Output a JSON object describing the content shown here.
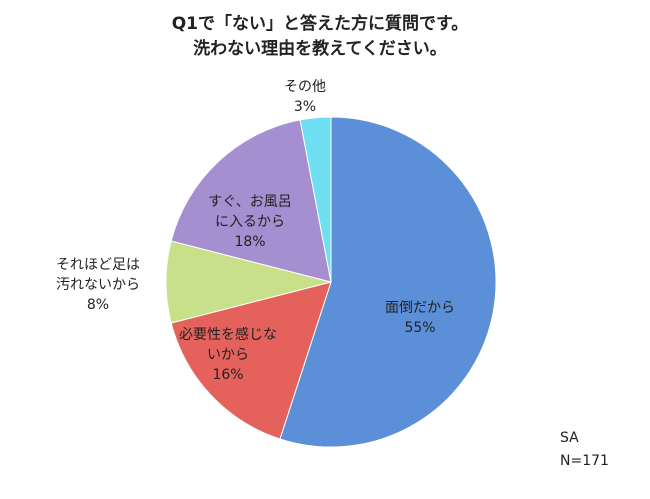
{
  "chart_data": {
    "type": "pie",
    "title": [
      "Q1で「ない」と答えた方に質問です。",
      "洗わない理由を教えてください。"
    ],
    "categories": [
      [
        "面倒だから"
      ],
      [
        "必要性を感じな",
        "いから"
      ],
      [
        "それほど足は",
        "汚れないから"
      ],
      [
        "すぐ、お風呂",
        "に入るから"
      ],
      [
        "その他"
      ]
    ],
    "values": [
      55,
      16,
      8,
      18,
      3
    ],
    "value_labels": [
      "55%",
      "16%",
      "8%",
      "18%",
      "3%"
    ],
    "colors": [
      "#5b8fd8",
      "#e5625c",
      "#c8e08a",
      "#a58fd0",
      "#6fe0f2"
    ],
    "notes": [
      "SA",
      "N=171"
    ]
  }
}
